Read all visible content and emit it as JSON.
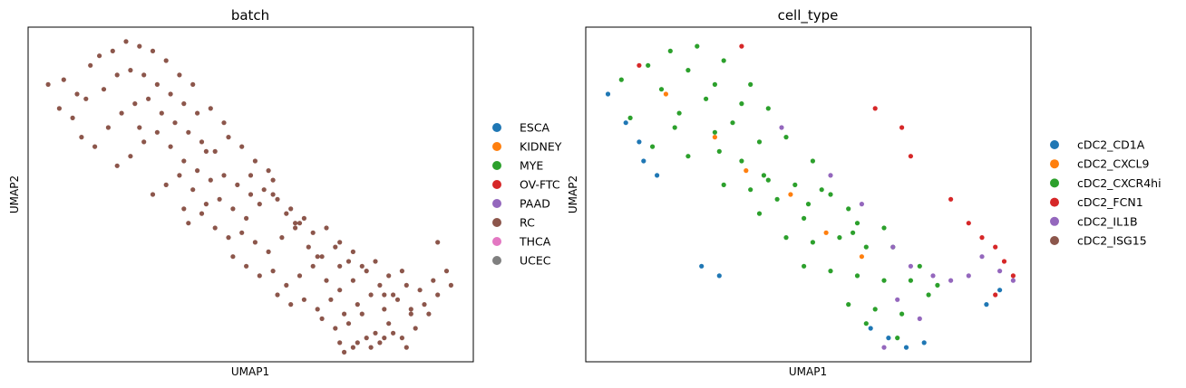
{
  "chart_data": [
    {
      "type": "scatter",
      "title": "batch",
      "xlabel": "UMAP1",
      "ylabel": "UMAP2",
      "xlim": [
        0,
        10
      ],
      "ylim": [
        0,
        7
      ],
      "grid": false,
      "legend_position": "right",
      "legend": [
        {
          "label": "ESCA",
          "color": "#1f77b4"
        },
        {
          "label": "KIDNEY",
          "color": "#ff7f0e"
        },
        {
          "label": "MYE",
          "color": "#2ca02c"
        },
        {
          "label": "OV-FTC",
          "color": "#d62728"
        },
        {
          "label": "PAAD",
          "color": "#9467bd"
        },
        {
          "label": "RC",
          "color": "#8c564b"
        },
        {
          "label": "THCA",
          "color": "#e377c2"
        },
        {
          "label": "UCEC",
          "color": "#7f7f7f"
        }
      ],
      "series": [
        {
          "name": "RC",
          "color": "#8c564b",
          "x": [
            0.45,
            0.8,
            1.1,
            1.4,
            1.6,
            1.9,
            2.2,
            2.5,
            2.8,
            3.1,
            3.4,
            3.7,
            0.7,
            1.0,
            1.3,
            1.7,
            2.0,
            2.3,
            2.6,
            2.9,
            3.2,
            3.5,
            3.8,
            4.1,
            4.4,
            1.2,
            1.5,
            1.8,
            2.1,
            2.4,
            2.7,
            3.0,
            3.3,
            3.6,
            3.9,
            4.2,
            4.5,
            4.8,
            5.1,
            5.4,
            2.0,
            2.3,
            2.6,
            2.9,
            3.2,
            3.5,
            3.8,
            4.1,
            4.4,
            4.7,
            5.0,
            5.3,
            5.6,
            5.9,
            6.2,
            2.8,
            3.1,
            3.4,
            3.7,
            4.0,
            4.3,
            4.6,
            4.9,
            5.2,
            5.5,
            5.8,
            6.1,
            6.4,
            6.7,
            7.0,
            7.3,
            3.6,
            3.9,
            4.2,
            4.5,
            4.8,
            5.1,
            5.4,
            5.7,
            6.0,
            6.3,
            6.6,
            6.9,
            7.2,
            7.5,
            7.8,
            8.1,
            8.4,
            4.6,
            4.9,
            5.2,
            5.5,
            5.8,
            6.1,
            6.4,
            6.7,
            7.0,
            7.3,
            7.6,
            7.9,
            8.2,
            8.5,
            8.8,
            9.1,
            9.4,
            5.6,
            5.9,
            6.2,
            6.5,
            6.8,
            7.1,
            7.4,
            7.7,
            8.0,
            8.3,
            8.6,
            8.9,
            9.2,
            9.5,
            6.6,
            6.9,
            7.2,
            7.5,
            7.8,
            8.1,
            8.4,
            8.7,
            9.0,
            7.0,
            7.3,
            7.6,
            7.9,
            8.2,
            8.5,
            7.1,
            7.4,
            7.7,
            8.0,
            4.0,
            5.0,
            6.0,
            7.0,
            8.0,
            8.6,
            9.2,
            2.5,
            3.5,
            5.5,
            6.5
          ],
          "y": [
            5.8,
            5.9,
            5.6,
            6.2,
            6.4,
            6.5,
            6.7,
            6.6,
            6.5,
            6.3,
            6.0,
            5.8,
            5.3,
            5.1,
            5.5,
            5.7,
            6.0,
            6.1,
            6.0,
            5.8,
            5.6,
            5.4,
            5.2,
            5.3,
            5.0,
            4.7,
            4.5,
            4.9,
            5.2,
            5.4,
            5.5,
            5.2,
            5.0,
            4.8,
            4.6,
            4.4,
            4.7,
            4.5,
            4.2,
            4.0,
            4.1,
            4.3,
            4.6,
            4.8,
            4.5,
            4.2,
            4.0,
            3.8,
            3.9,
            3.7,
            3.9,
            3.6,
            3.4,
            3.2,
            3.0,
            3.5,
            3.7,
            3.9,
            3.6,
            3.3,
            3.4,
            3.2,
            3.0,
            3.3,
            3.5,
            3.1,
            2.9,
            2.7,
            2.8,
            2.5,
            2.3,
            2.9,
            3.1,
            2.8,
            2.6,
            2.7,
            2.5,
            2.3,
            2.6,
            2.8,
            2.4,
            2.2,
            2.4,
            2.1,
            2.0,
            2.1,
            1.8,
            1.9,
            2.2,
            2.0,
            1.8,
            1.9,
            1.6,
            1.8,
            2.0,
            1.7,
            1.5,
            1.7,
            1.9,
            1.6,
            1.4,
            1.6,
            1.5,
            1.7,
            1.9,
            1.4,
            1.2,
            1.3,
            1.1,
            1.3,
            1.0,
            1.2,
            1.4,
            1.1,
            1.3,
            1.0,
            1.2,
            1.4,
            1.6,
            0.9,
            0.7,
            0.8,
            1.0,
            0.6,
            0.8,
            0.5,
            0.7,
            1.0,
            0.4,
            0.3,
            0.5,
            0.4,
            0.6,
            0.3,
            0.2,
            0.4,
            0.3,
            0.5,
            4.4,
            3.5,
            2.9,
            2.0,
            1.4,
            1.1,
            2.5,
            4.9,
            3.2,
            3.8,
            2.2
          ]
        }
      ]
    },
    {
      "type": "scatter",
      "title": "cell_type",
      "xlabel": "UMAP1",
      "ylabel": "UMAP2",
      "xlim": [
        0,
        10
      ],
      "ylim": [
        0,
        7
      ],
      "grid": false,
      "legend_position": "right",
      "legend": [
        {
          "label": "cDC2_CD1A",
          "color": "#1f77b4"
        },
        {
          "label": "cDC2_CXCL9",
          "color": "#ff7f0e"
        },
        {
          "label": "cDC2_CXCR4hi",
          "color": "#2ca02c"
        },
        {
          "label": "cDC2_FCN1",
          "color": "#d62728"
        },
        {
          "label": "cDC2_IL1B",
          "color": "#9467bd"
        },
        {
          "label": "cDC2_ISG15",
          "color": "#8c564b"
        }
      ],
      "series": [
        {
          "name": "cDC2_CXCR4hi",
          "color": "#2ca02c",
          "x": [
            0.8,
            1.4,
            1.9,
            2.5,
            3.1,
            3.7,
            1.0,
            1.7,
            2.3,
            2.9,
            3.5,
            4.1,
            1.5,
            2.1,
            2.7,
            3.3,
            3.9,
            4.5,
            5.1,
            2.3,
            2.9,
            3.5,
            4.1,
            4.7,
            5.3,
            5.9,
            3.1,
            3.7,
            4.3,
            4.9,
            5.5,
            6.1,
            6.7,
            3.9,
            4.5,
            5.1,
            5.7,
            6.3,
            6.9,
            7.5,
            4.9,
            5.5,
            6.1,
            6.7,
            7.3,
            7.9,
            5.9,
            6.5,
            7.1,
            7.7,
            6.3,
            7.0,
            2.0,
            3.0,
            4.0,
            5.0,
            6.0
          ],
          "y": [
            5.9,
            6.2,
            6.5,
            6.6,
            6.3,
            5.8,
            5.1,
            5.7,
            6.1,
            5.8,
            5.4,
            5.3,
            4.5,
            5.2,
            5.5,
            5.0,
            4.6,
            4.7,
            4.2,
            4.3,
            4.8,
            4.2,
            3.8,
            3.7,
            3.6,
            3.2,
            3.7,
            3.6,
            3.4,
            3.0,
            3.5,
            2.9,
            2.8,
            3.1,
            2.6,
            2.5,
            2.6,
            2.4,
            2.4,
            2.0,
            2.0,
            1.9,
            1.8,
            1.7,
            1.7,
            1.6,
            1.2,
            1.1,
            1.0,
            1.4,
            0.8,
            0.5,
            4.9,
            4.4,
            3.9,
            3.3,
            2.7
          ]
        },
        {
          "name": "cDC2_CD1A",
          "color": "#1f77b4",
          "x": [
            0.5,
            0.9,
            1.2,
            1.3,
            1.6,
            2.6,
            3.0,
            6.4,
            6.8,
            7.2,
            7.6,
            9.0,
            9.3
          ],
          "y": [
            5.6,
            5.0,
            4.6,
            4.2,
            3.9,
            2.0,
            1.8,
            0.7,
            0.5,
            0.3,
            0.4,
            1.2,
            1.5
          ]
        },
        {
          "name": "cDC2_CXCL9",
          "color": "#ff7f0e",
          "x": [
            1.8,
            2.9,
            3.6,
            4.6,
            5.4,
            6.2
          ],
          "y": [
            5.6,
            4.7,
            4.0,
            3.5,
            2.7,
            2.2
          ]
        },
        {
          "name": "cDC2_FCN1",
          "color": "#d62728",
          "x": [
            1.2,
            3.5,
            6.5,
            7.1,
            7.3,
            8.2,
            8.6,
            8.9,
            9.2,
            9.4,
            9.6,
            9.2
          ],
          "y": [
            6.2,
            6.6,
            5.3,
            4.9,
            4.3,
            3.4,
            2.9,
            2.6,
            2.4,
            2.1,
            1.8,
            1.4
          ]
        },
        {
          "name": "cDC2_IL1B",
          "color": "#9467bd",
          "x": [
            4.4,
            5.5,
            6.2,
            6.9,
            7.3,
            7.8,
            8.2,
            8.6,
            8.9,
            9.3,
            9.6,
            7.0,
            7.5,
            6.7
          ],
          "y": [
            4.9,
            3.9,
            3.3,
            2.4,
            2.0,
            1.8,
            1.7,
            1.8,
            2.2,
            1.9,
            1.7,
            1.3,
            0.9,
            0.3
          ]
        }
      ]
    }
  ]
}
